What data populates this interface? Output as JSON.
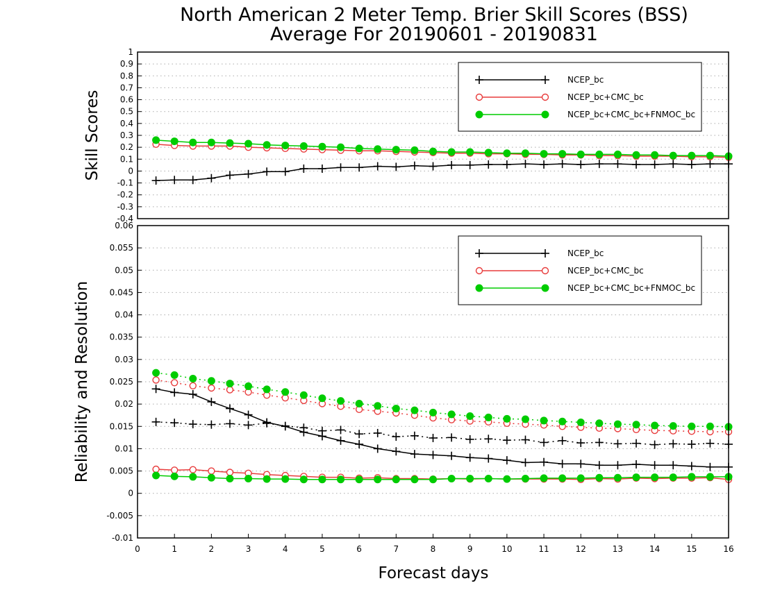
{
  "title_lines": [
    "North American 2 Meter Temp. Brier Skill Scores (BSS)",
    "Average For 20190601 - 20190831"
  ],
  "colors": {
    "ncep": "#000000",
    "ncep_cmc": "#e83b3b",
    "ncep_cmc_fnmoc": "#00cc00",
    "grid": "#aaaaaa"
  },
  "chart_data": [
    {
      "type": "line",
      "ylabel": "Skill Scores",
      "xlabel": "",
      "xlim": [
        0,
        16
      ],
      "ylim": [
        -0.4,
        1
      ],
      "xticks": [
        "0",
        "1",
        "2",
        "3",
        "4",
        "5",
        "6",
        "7",
        "8",
        "9",
        "10",
        "11",
        "12",
        "13",
        "14",
        "15",
        "16"
      ],
      "yticks": [
        "-0.4",
        "-0.3",
        "-0.2",
        "-0.1",
        "0",
        "0.1",
        "0.2",
        "0.3",
        "0.4",
        "0.5",
        "0.6",
        "0.7",
        "0.8",
        "0.9",
        "1"
      ],
      "grid": true,
      "legend_position": "top-right",
      "x": [
        0.5,
        1.0,
        1.5,
        2.0,
        2.5,
        3.0,
        3.5,
        4.0,
        4.5,
        5.0,
        5.5,
        6.0,
        6.5,
        7.0,
        7.5,
        8.0,
        8.5,
        9.0,
        9.5,
        10.0,
        10.5,
        11.0,
        11.5,
        12.0,
        12.5,
        13.0,
        13.5,
        14.0,
        14.5,
        15.0,
        15.5,
        16.0
      ],
      "series": [
        {
          "name": "NCEP_bc",
          "color": "#000000",
          "marker": "plus",
          "dash": "solid",
          "values": [
            -0.08,
            -0.075,
            -0.075,
            -0.06,
            -0.035,
            -0.025,
            -0.005,
            -0.005,
            0.02,
            0.02,
            0.03,
            0.03,
            0.04,
            0.035,
            0.045,
            0.04,
            0.05,
            0.05,
            0.055,
            0.055,
            0.06,
            0.055,
            0.06,
            0.055,
            0.06,
            0.06,
            0.055,
            0.055,
            0.06,
            0.055,
            0.06,
            0.06
          ]
        },
        {
          "name": "NCEP_bc+CMC_bc",
          "color": "#e83b3b",
          "marker": "circle-open",
          "dash": "solid",
          "values": [
            0.225,
            0.215,
            0.21,
            0.21,
            0.21,
            0.2,
            0.195,
            0.19,
            0.185,
            0.18,
            0.175,
            0.17,
            0.17,
            0.165,
            0.16,
            0.155,
            0.15,
            0.15,
            0.145,
            0.145,
            0.14,
            0.14,
            0.135,
            0.135,
            0.13,
            0.13,
            0.125,
            0.125,
            0.125,
            0.12,
            0.12,
            0.115
          ]
        },
        {
          "name": "NCEP_bc+CMC_bc+FNMOC_bc",
          "color": "#00cc00",
          "marker": "circle-filled",
          "dash": "solid",
          "values": [
            0.26,
            0.25,
            0.24,
            0.24,
            0.235,
            0.23,
            0.22,
            0.215,
            0.21,
            0.205,
            0.2,
            0.19,
            0.185,
            0.18,
            0.175,
            0.165,
            0.16,
            0.16,
            0.155,
            0.15,
            0.15,
            0.145,
            0.145,
            0.14,
            0.14,
            0.14,
            0.135,
            0.135,
            0.13,
            0.13,
            0.13,
            0.125
          ]
        }
      ]
    },
    {
      "type": "line",
      "ylabel": "Reliability and Resolution",
      "xlabel": "Forecast days",
      "xlim": [
        0,
        16
      ],
      "ylim": [
        -0.01,
        0.06
      ],
      "xticks": [
        "0",
        "1",
        "2",
        "3",
        "4",
        "5",
        "6",
        "7",
        "8",
        "9",
        "10",
        "11",
        "12",
        "13",
        "14",
        "15",
        "16"
      ],
      "yticks": [
        "-0.01",
        "-0.005",
        "0",
        "0.005",
        "0.01",
        "0.015",
        "0.02",
        "0.025",
        "0.03",
        "0.035",
        "0.04",
        "0.045",
        "0.05",
        "0.055",
        "0.06"
      ],
      "grid": true,
      "legend_position": "top-right",
      "legend": [
        {
          "name": "NCEP_bc",
          "color": "#000000",
          "marker": "plus"
        },
        {
          "name": "NCEP_bc+CMC_bc",
          "color": "#e83b3b",
          "marker": "circle-open"
        },
        {
          "name": "NCEP_bc+CMC_bc+FNMOC_bc",
          "color": "#00cc00",
          "marker": "circle-filled"
        }
      ],
      "x": [
        0.5,
        1.0,
        1.5,
        2.0,
        2.5,
        3.0,
        3.5,
        4.0,
        4.5,
        5.0,
        5.5,
        6.0,
        6.5,
        7.0,
        7.5,
        8.0,
        8.5,
        9.0,
        9.5,
        10.0,
        10.5,
        11.0,
        11.5,
        12.0,
        12.5,
        13.0,
        13.5,
        14.0,
        14.5,
        15.0,
        15.5,
        16.0
      ],
      "series": [
        {
          "color": "#000000",
          "marker": "plus",
          "dash": "solid",
          "values": [
            0.0234,
            0.0226,
            0.0222,
            0.0205,
            0.019,
            0.0176,
            0.0159,
            0.015,
            0.0137,
            0.0128,
            0.0118,
            0.011,
            0.01,
            0.0094,
            0.0088,
            0.0086,
            0.0084,
            0.008,
            0.0078,
            0.0074,
            0.0069,
            0.007,
            0.0066,
            0.0066,
            0.0063,
            0.0063,
            0.0065,
            0.0063,
            0.0063,
            0.0061,
            0.0059,
            0.0059
          ]
        },
        {
          "color": "#000000",
          "marker": "plus",
          "dash": "dotted",
          "values": [
            0.016,
            0.0158,
            0.0155,
            0.0154,
            0.0156,
            0.0153,
            0.0157,
            0.0151,
            0.0147,
            0.014,
            0.0142,
            0.0133,
            0.0135,
            0.0127,
            0.0129,
            0.0124,
            0.0125,
            0.0121,
            0.0122,
            0.0119,
            0.012,
            0.0114,
            0.0118,
            0.0113,
            0.0114,
            0.0111,
            0.0112,
            0.0109,
            0.0111,
            0.011,
            0.0112,
            0.011
          ]
        },
        {
          "color": "#e83b3b",
          "marker": "circle-open",
          "dash": "dotted",
          "values": [
            0.0254,
            0.0248,
            0.0241,
            0.0236,
            0.0232,
            0.0227,
            0.022,
            0.0214,
            0.0208,
            0.0201,
            0.0195,
            0.0188,
            0.0184,
            0.018,
            0.0175,
            0.0169,
            0.0165,
            0.0162,
            0.016,
            0.0157,
            0.0155,
            0.0153,
            0.015,
            0.0148,
            0.0146,
            0.0145,
            0.0143,
            0.0141,
            0.014,
            0.0139,
            0.0138,
            0.0138
          ]
        },
        {
          "color": "#00cc00",
          "marker": "circle-filled",
          "dash": "dotted",
          "values": [
            0.027,
            0.0265,
            0.0257,
            0.0252,
            0.0246,
            0.024,
            0.0233,
            0.0227,
            0.022,
            0.0213,
            0.0207,
            0.0201,
            0.0196,
            0.019,
            0.0186,
            0.0181,
            0.0177,
            0.0173,
            0.017,
            0.0167,
            0.0166,
            0.0163,
            0.0161,
            0.0159,
            0.0157,
            0.0155,
            0.0154,
            0.0152,
            0.0151,
            0.015,
            0.015,
            0.0149
          ]
        },
        {
          "color": "#e83b3b",
          "marker": "circle-open",
          "dash": "solid",
          "values": [
            0.0054,
            0.0052,
            0.0053,
            0.005,
            0.0047,
            0.0045,
            0.0042,
            0.004,
            0.0038,
            0.0036,
            0.0036,
            0.0034,
            0.0035,
            0.0033,
            0.0033,
            0.0032,
            0.0033,
            0.0032,
            0.0033,
            0.0032,
            0.0032,
            0.0032,
            0.0032,
            0.0031,
            0.0033,
            0.0032,
            0.0034,
            0.0033,
            0.0034,
            0.0034,
            0.0035,
            0.0031
          ]
        },
        {
          "color": "#00cc00",
          "marker": "circle-filled",
          "dash": "solid",
          "values": [
            0.004,
            0.0038,
            0.0037,
            0.0035,
            0.0033,
            0.0033,
            0.0032,
            0.0032,
            0.0031,
            0.0031,
            0.0031,
            0.0031,
            0.0031,
            0.0031,
            0.0031,
            0.0031,
            0.0033,
            0.0033,
            0.0033,
            0.0032,
            0.0033,
            0.0034,
            0.0034,
            0.0034,
            0.0035,
            0.0035,
            0.0036,
            0.0036,
            0.0036,
            0.0037,
            0.0037,
            0.0037
          ]
        }
      ]
    }
  ]
}
